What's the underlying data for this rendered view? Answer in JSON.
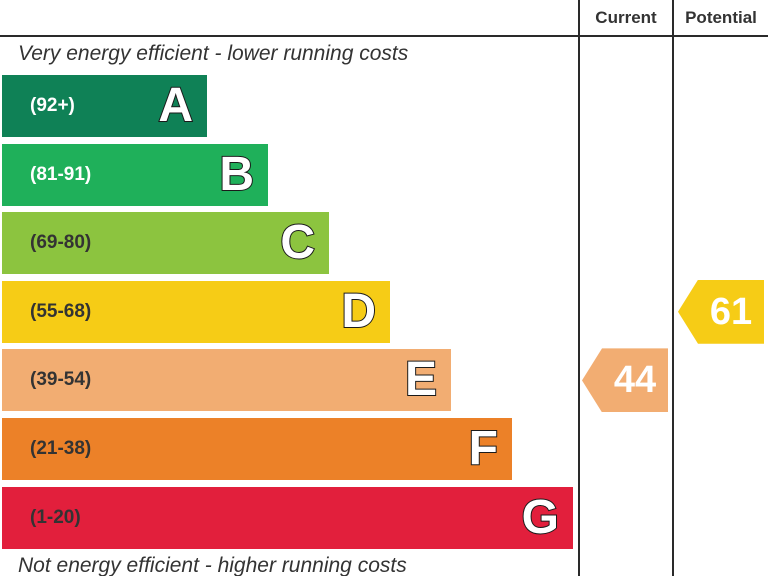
{
  "headers": {
    "current": "Current",
    "potential": "Potential"
  },
  "captions": {
    "top": "Very energy efficient - lower running costs",
    "bottom": "Not energy efficient - higher running costs"
  },
  "chart_data": {
    "type": "bar",
    "title": "",
    "bands": [
      {
        "range": "(92+)",
        "letter": "A",
        "color": "#0f8156",
        "range_color": "#ffffff"
      },
      {
        "range": "(81-91)",
        "letter": "B",
        "color": "#1fb05a",
        "range_color": "#ffffff"
      },
      {
        "range": "(69-80)",
        "letter": "C",
        "color": "#8cc43f",
        "range_color": "#333333"
      },
      {
        "range": "(55-68)",
        "letter": "D",
        "color": "#f6cc16",
        "range_color": "#333333"
      },
      {
        "range": "(39-54)",
        "letter": "E",
        "color": "#f2ad72",
        "range_color": "#333333"
      },
      {
        "range": "(21-38)",
        "letter": "F",
        "color": "#ec8128",
        "range_color": "#333333"
      },
      {
        "range": "(1-20)",
        "letter": "G",
        "color": "#e21f3c",
        "range_color": "#333333"
      }
    ],
    "current": {
      "value": 44,
      "band": "E",
      "color": "#f2ad72"
    },
    "potential": {
      "value": 61,
      "band": "D",
      "color": "#f6cc16"
    }
  }
}
